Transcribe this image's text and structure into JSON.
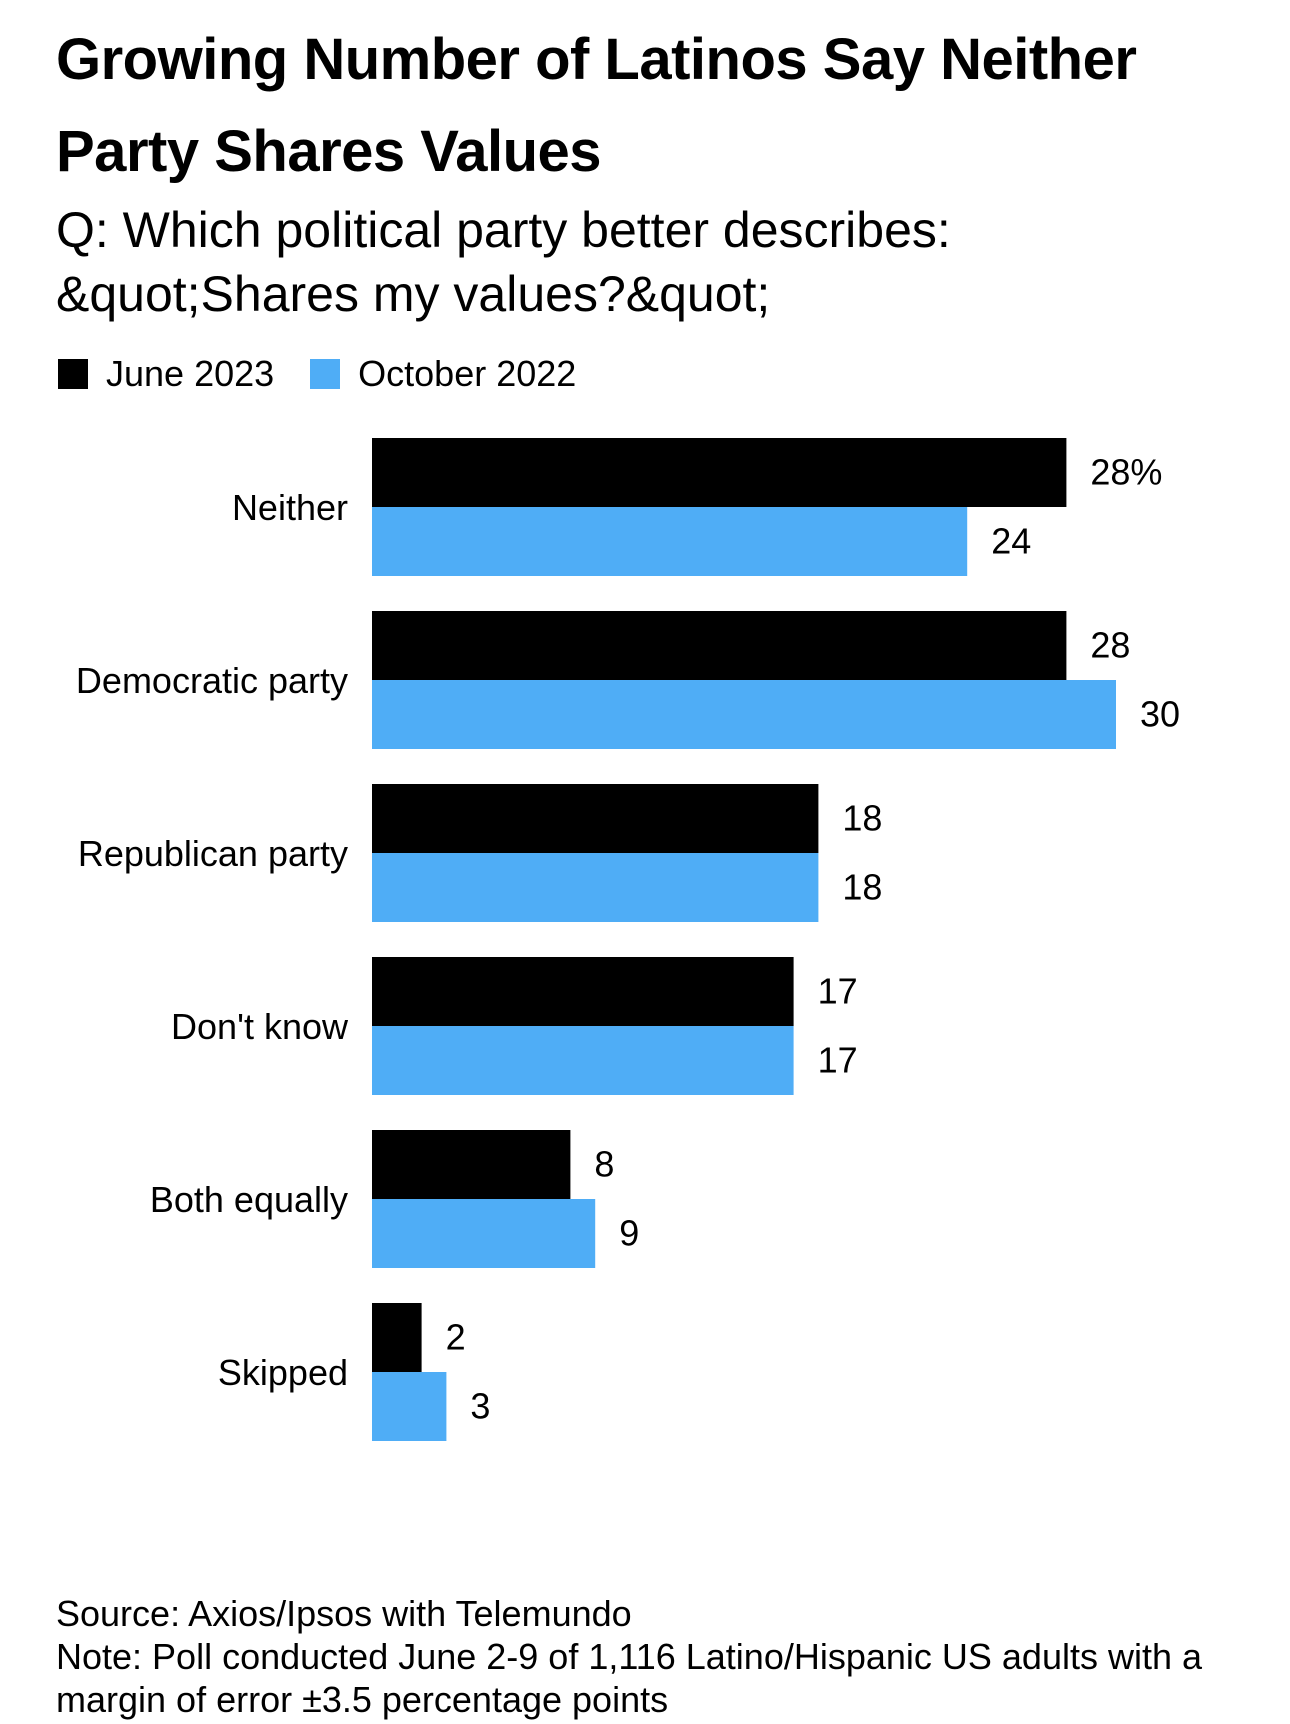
{
  "title": "Growing Number of Latinos Say Neither Party Shares Values",
  "subtitle": "Q: Which political party better describes: &quot;Shares my values?&quot;",
  "legend": [
    {
      "label": "June 2023",
      "color": "#000000"
    },
    {
      "label": "October 2022",
      "color": "#4fadf6"
    }
  ],
  "footer": {
    "source": "Source: Axios/Ipsos with Telemundo",
    "note": "Note: Poll conducted June 2-9 of 1,116 Latino/Hispanic US adults with a margin of error ±3.5 percentage points"
  },
  "chart_data": {
    "type": "bar",
    "orientation": "horizontal",
    "categories": [
      "Neither",
      "Democratic party",
      "Republican party",
      "Don't know",
      "Both equally",
      "Skipped"
    ],
    "series": [
      {
        "name": "June 2023",
        "color": "#000000",
        "values": [
          28,
          28,
          18,
          17,
          8,
          2
        ],
        "labels": [
          "28%",
          "28",
          "18",
          "17",
          "8",
          "2"
        ]
      },
      {
        "name": "October 2022",
        "color": "#4fadf6",
        "values": [
          24,
          30,
          18,
          17,
          9,
          3
        ],
        "labels": [
          "24",
          "30",
          "18",
          "17",
          "9",
          "3"
        ]
      }
    ],
    "xlim": [
      0,
      30
    ],
    "grid": false,
    "legend_position": "top-left"
  }
}
